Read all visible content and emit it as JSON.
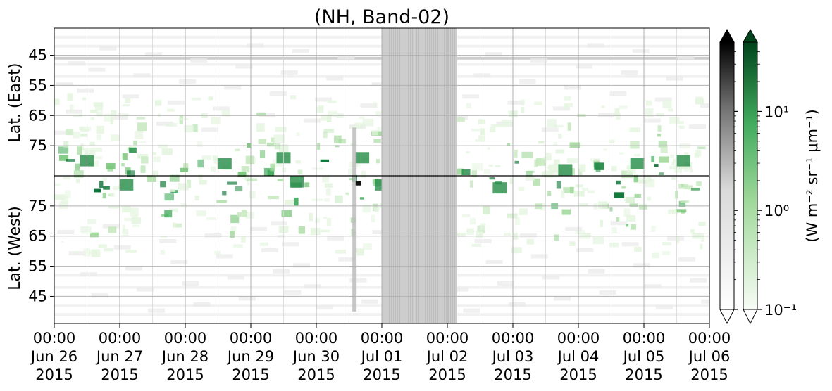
{
  "chart_data": {
    "type": "heatmap",
    "title": "(NH, Band-02)",
    "ylabel_east": "Lat. (East)",
    "ylabel_west": "Lat. (West)",
    "x_tick_labels": [
      {
        "time": "00:00",
        "date": "Jun 26",
        "year": "2015"
      },
      {
        "time": "00:00",
        "date": "Jun 27",
        "year": "2015"
      },
      {
        "time": "00:00",
        "date": "Jun 28",
        "year": "2015"
      },
      {
        "time": "00:00",
        "date": "Jun 29",
        "year": "2015"
      },
      {
        "time": "00:00",
        "date": "Jun 30",
        "year": "2015"
      },
      {
        "time": "00:00",
        "date": "Jul 01",
        "year": "2015"
      },
      {
        "time": "00:00",
        "date": "Jul 02",
        "year": "2015"
      },
      {
        "time": "00:00",
        "date": "Jul 03",
        "year": "2015"
      },
      {
        "time": "00:00",
        "date": "Jul 04",
        "year": "2015"
      },
      {
        "time": "00:00",
        "date": "Jul 05",
        "year": "2015"
      },
      {
        "time": "00:00",
        "date": "Jul 06",
        "year": "2015"
      }
    ],
    "y_ticks_east": [
      "45",
      "55",
      "65",
      "75"
    ],
    "y_ticks_west": [
      "75",
      "65",
      "55",
      "45"
    ],
    "y_range": [
      -49,
      49
    ],
    "x_range_days": [
      0,
      10
    ],
    "grid": true,
    "colorbar_label": "(W m⁻² sr⁻¹ μm⁻¹)",
    "colorbar_ticks": [
      "10⁻¹",
      "10⁰",
      "10¹"
    ],
    "colorbar_scale": "log",
    "colorbar_range": [
      0.1,
      50
    ],
    "colormaps": [
      "Greys",
      "Greens"
    ],
    "missing_data_blocks": [
      {
        "day_start": 5.0,
        "day_end": 6.15
      }
    ],
    "colors": {
      "green_dark": "#00441b",
      "green_mid": "#41ab5d",
      "green_light": "#c7e9c0",
      "gray_fill": "#c8c8c8",
      "grid": "#b0b0b0"
    }
  }
}
